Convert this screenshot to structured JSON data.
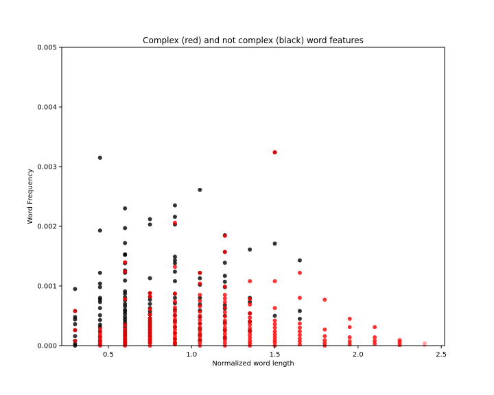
{
  "chart_data": {
    "type": "scatter",
    "title": "Complex (red) and not complex (black) word features",
    "xlabel": "Normalized word length",
    "ylabel": "Word Frequency",
    "xlim": [
      0.22,
      2.52
    ],
    "ylim": [
      0,
      0.005
    ],
    "xticks": [
      0.5,
      1.0,
      1.5,
      2.0,
      2.5
    ],
    "xtick_labels": [
      "0.5",
      "1.0",
      "1.5",
      "2.0",
      "2.5"
    ],
    "yticks": [
      0,
      0.001,
      0.002,
      0.003,
      0.004,
      0.005
    ],
    "ytick_labels": [
      "0.000",
      "0.001",
      "0.002",
      "0.003",
      "0.004",
      "0.005"
    ],
    "grid": false,
    "legend": "none",
    "series": [
      {
        "color": "#000000",
        "points": [
          [
            0.3,
            0.00095
          ],
          [
            0.3,
            0.00058
          ],
          [
            0.3,
            0.00048
          ],
          [
            0.3,
            0.00044
          ],
          [
            0.3,
            0.00036
          ],
          [
            0.3,
            0.00026
          ],
          [
            0.3,
            0.00016
          ],
          [
            0.3,
            8e-05
          ],
          [
            0.3,
            3e-05
          ],
          [
            0.3,
            0.0
          ],
          [
            0.45,
            0.00315
          ],
          [
            0.45,
            0.00193
          ],
          [
            0.45,
            0.00122
          ],
          [
            0.45,
            0.00104
          ],
          [
            0.45,
            0.00098
          ],
          [
            0.45,
            0.0008
          ],
          [
            0.45,
            0.00077
          ],
          [
            0.45,
            0.00073
          ],
          [
            0.45,
            0.00063
          ],
          [
            0.45,
            0.00051
          ],
          [
            0.45,
            0.00043
          ],
          [
            0.45,
            0.00035
          ],
          [
            0.45,
            0.00031
          ],
          [
            0.45,
            0.00024
          ],
          [
            0.45,
            0.00015
          ],
          [
            0.45,
            8e-05
          ],
          [
            0.45,
            2e-05
          ],
          [
            0.6,
            0.0023
          ],
          [
            0.6,
            0.00197
          ],
          [
            0.6,
            0.00172
          ],
          [
            0.6,
            0.00153
          ],
          [
            0.6,
            0.00152
          ],
          [
            0.6,
            0.00138
          ],
          [
            0.6,
            0.00126
          ],
          [
            0.6,
            0.00122
          ],
          [
            0.6,
            0.00109
          ],
          [
            0.6,
            0.00091
          ],
          [
            0.6,
            0.00087
          ],
          [
            0.6,
            0.00081
          ],
          [
            0.6,
            0.00076
          ],
          [
            0.6,
            0.0007
          ],
          [
            0.6,
            0.00066
          ],
          [
            0.6,
            0.0006
          ],
          [
            0.6,
            0.00057
          ],
          [
            0.6,
            0.00053
          ],
          [
            0.6,
            0.00048
          ],
          [
            0.6,
            0.00044
          ],
          [
            0.6,
            0.0004
          ],
          [
            0.6,
            0.00036
          ],
          [
            0.6,
            0.00031
          ],
          [
            0.6,
            0.00025
          ],
          [
            0.6,
            0.0002
          ],
          [
            0.6,
            0.00016
          ],
          [
            0.6,
            0.00011
          ],
          [
            0.6,
            6e-05
          ],
          [
            0.6,
            2e-05
          ],
          [
            0.75,
            0.00212
          ],
          [
            0.75,
            0.00203
          ],
          [
            0.75,
            0.00113
          ],
          [
            0.75,
            0.00088
          ],
          [
            0.75,
            0.00082
          ],
          [
            0.75,
            0.00077
          ],
          [
            0.75,
            0.0007
          ],
          [
            0.75,
            0.00063
          ],
          [
            0.75,
            0.00057
          ],
          [
            0.75,
            0.00052
          ],
          [
            0.75,
            0.00046
          ],
          [
            0.75,
            0.00041
          ],
          [
            0.75,
            0.00036
          ],
          [
            0.75,
            0.00031
          ],
          [
            0.75,
            0.00026
          ],
          [
            0.75,
            0.00021
          ],
          [
            0.75,
            0.00016
          ],
          [
            0.75,
            0.0001
          ],
          [
            0.75,
            5e-05
          ],
          [
            0.9,
            0.00235
          ],
          [
            0.9,
            0.00216
          ],
          [
            0.9,
            0.00203
          ],
          [
            0.9,
            0.00149
          ],
          [
            0.9,
            0.00143
          ],
          [
            0.9,
            0.00138
          ],
          [
            0.9,
            0.00124
          ],
          [
            0.9,
            0.00108
          ],
          [
            0.9,
            0.00087
          ],
          [
            0.9,
            0.0008
          ],
          [
            0.9,
            0.00071
          ],
          [
            0.9,
            0.0006
          ],
          [
            0.9,
            0.00051
          ],
          [
            0.9,
            0.00041
          ],
          [
            0.9,
            0.00031
          ],
          [
            0.9,
            0.00021
          ],
          [
            0.9,
            0.00011
          ],
          [
            0.9,
            4e-05
          ],
          [
            1.05,
            0.00261
          ],
          [
            1.05,
            0.00122
          ],
          [
            1.05,
            0.00113
          ],
          [
            1.05,
            0.00102
          ],
          [
            1.05,
            0.0008
          ],
          [
            1.05,
            0.00069
          ],
          [
            1.05,
            0.00059
          ],
          [
            1.05,
            0.00048
          ],
          [
            1.05,
            0.00037
          ],
          [
            1.05,
            0.00028
          ],
          [
            1.05,
            0.00018
          ],
          [
            1.05,
            9e-05
          ],
          [
            1.2,
            0.00185
          ],
          [
            1.2,
            0.00157
          ],
          [
            1.2,
            0.00139
          ],
          [
            1.2,
            0.00117
          ],
          [
            1.2,
            0.00107
          ],
          [
            1.2,
            0.00098
          ],
          [
            1.2,
            0.00068
          ],
          [
            1.2,
            0.00062
          ],
          [
            1.2,
            0.0005
          ],
          [
            1.2,
            0.00039
          ],
          [
            1.2,
            0.00026
          ],
          [
            1.2,
            0.00013
          ],
          [
            1.35,
            0.00161
          ],
          [
            1.35,
            0.0008
          ],
          [
            1.35,
            0.00073
          ],
          [
            1.35,
            0.00054
          ],
          [
            1.35,
            0.0004
          ],
          [
            1.35,
            0.00025
          ],
          [
            1.5,
            0.00324
          ],
          [
            1.5,
            0.00171
          ],
          [
            1.5,
            0.0005
          ],
          [
            1.65,
            0.00143
          ],
          [
            1.65,
            0.00058
          ],
          [
            1.65,
            0.00045
          ]
        ]
      },
      {
        "color": "#ff0000",
        "points": [
          [
            0.3,
            0.00058
          ],
          [
            0.3,
            0.00026
          ],
          [
            0.3,
            8e-05
          ],
          [
            0.45,
            0.00028
          ],
          [
            0.45,
            0.00022
          ],
          [
            0.45,
            0.00018
          ],
          [
            0.45,
            0.00014
          ],
          [
            0.45,
            0.0001
          ],
          [
            0.45,
            6e-05
          ],
          [
            0.45,
            3e-05
          ],
          [
            0.45,
            0.0
          ],
          [
            0.6,
            0.0014
          ],
          [
            0.6,
            0.00124
          ],
          [
            0.6,
            0.00078
          ],
          [
            0.6,
            0.00035
          ],
          [
            0.6,
            0.00028
          ],
          [
            0.6,
            0.00022
          ],
          [
            0.6,
            0.00017
          ],
          [
            0.6,
            0.00012
          ],
          [
            0.6,
            8e-05
          ],
          [
            0.6,
            4e-05
          ],
          [
            0.6,
            0.0
          ],
          [
            0.75,
            0.00088
          ],
          [
            0.75,
            0.00082
          ],
          [
            0.75,
            0.00061
          ],
          [
            0.75,
            0.00052
          ],
          [
            0.75,
            0.00045
          ],
          [
            0.75,
            0.00039
          ],
          [
            0.75,
            0.00033
          ],
          [
            0.75,
            0.00028
          ],
          [
            0.75,
            0.00023
          ],
          [
            0.75,
            0.00018
          ],
          [
            0.75,
            0.00013
          ],
          [
            0.75,
            9e-05
          ],
          [
            0.75,
            5e-05
          ],
          [
            0.75,
            0.0
          ],
          [
            0.9,
            0.00206
          ],
          [
            0.9,
            0.00132
          ],
          [
            0.9,
            0.00087
          ],
          [
            0.9,
            0.00074
          ],
          [
            0.9,
            0.00064
          ],
          [
            0.9,
            0.00057
          ],
          [
            0.9,
            0.0005
          ],
          [
            0.9,
            0.00044
          ],
          [
            0.9,
            0.00038
          ],
          [
            0.9,
            0.00032
          ],
          [
            0.9,
            0.00026
          ],
          [
            0.9,
            0.00021
          ],
          [
            0.9,
            0.00016
          ],
          [
            0.9,
            0.00011
          ],
          [
            0.9,
            6e-05
          ],
          [
            0.9,
            2e-05
          ],
          [
            1.05,
            0.00122
          ],
          [
            1.05,
            0.00104
          ],
          [
            1.05,
            0.00085
          ],
          [
            1.05,
            0.00075
          ],
          [
            1.05,
            0.00066
          ],
          [
            1.05,
            0.00057
          ],
          [
            1.05,
            0.0005
          ],
          [
            1.05,
            0.00043
          ],
          [
            1.05,
            0.00037
          ],
          [
            1.05,
            0.00031
          ],
          [
            1.05,
            0.00025
          ],
          [
            1.05,
            0.0002
          ],
          [
            1.05,
            0.00015
          ],
          [
            1.05,
            0.0001
          ],
          [
            1.05,
            5e-05
          ],
          [
            1.05,
            0.0
          ],
          [
            1.2,
            0.00184
          ],
          [
            1.2,
            0.00157
          ],
          [
            1.2,
            0.00099
          ],
          [
            1.2,
            0.00085
          ],
          [
            1.2,
            0.00079
          ],
          [
            1.2,
            0.00073
          ],
          [
            1.2,
            0.00064
          ],
          [
            1.2,
            0.00056
          ],
          [
            1.2,
            0.00049
          ],
          [
            1.2,
            0.00042
          ],
          [
            1.2,
            0.00036
          ],
          [
            1.2,
            0.0003
          ],
          [
            1.2,
            0.00025
          ],
          [
            1.2,
            0.0002
          ],
          [
            1.2,
            0.00015
          ],
          [
            1.2,
            0.0001
          ],
          [
            1.2,
            5e-05
          ],
          [
            1.2,
            0.0
          ],
          [
            1.35,
            0.00108
          ],
          [
            1.35,
            0.00078
          ],
          [
            1.35,
            0.00069
          ],
          [
            1.35,
            0.00054
          ],
          [
            1.35,
            0.00047
          ],
          [
            1.35,
            0.00041
          ],
          [
            1.35,
            0.00035
          ],
          [
            1.35,
            0.00029
          ],
          [
            1.35,
            0.00023
          ],
          [
            1.35,
            0.00018
          ],
          [
            1.35,
            0.00013
          ],
          [
            1.35,
            8e-05
          ],
          [
            1.35,
            4e-05
          ],
          [
            1.35,
            0.0
          ],
          [
            1.5,
            0.00324
          ],
          [
            1.5,
            0.00108
          ],
          [
            1.5,
            0.00063
          ],
          [
            1.5,
            0.00042
          ],
          [
            1.5,
            0.00036
          ],
          [
            1.5,
            0.0003
          ],
          [
            1.5,
            0.00024
          ],
          [
            1.5,
            0.00019
          ],
          [
            1.5,
            0.00014
          ],
          [
            1.5,
            9e-05
          ],
          [
            1.5,
            5e-05
          ],
          [
            1.5,
            0.0
          ],
          [
            1.65,
            0.00122
          ],
          [
            1.65,
            0.0008
          ],
          [
            1.65,
            0.00037
          ],
          [
            1.65,
            0.0003
          ],
          [
            1.65,
            0.00024
          ],
          [
            1.65,
            0.00018
          ],
          [
            1.65,
            0.00012
          ],
          [
            1.65,
            7e-05
          ],
          [
            1.65,
            2e-05
          ],
          [
            1.8,
            0.00077
          ],
          [
            1.8,
            0.00027
          ],
          [
            1.8,
            0.00016
          ],
          [
            1.8,
            9e-05
          ],
          [
            1.8,
            4e-05
          ],
          [
            1.8,
            0.0
          ],
          [
            1.95,
            0.00045
          ],
          [
            1.95,
            0.00031
          ],
          [
            1.95,
            0.00014
          ],
          [
            1.95,
            7e-05
          ],
          [
            1.95,
            2e-05
          ],
          [
            2.1,
            0.00031
          ],
          [
            2.1,
            0.00014
          ],
          [
            2.1,
            8e-05
          ],
          [
            2.1,
            3e-05
          ],
          [
            2.25,
            9e-05
          ],
          [
            2.25,
            5e-05
          ],
          [
            2.25,
            1e-05
          ]
        ]
      },
      {
        "color": "#ff9999",
        "points": [
          [
            2.4,
            4e-05
          ],
          [
            2.4,
            1e-05
          ]
        ]
      }
    ]
  }
}
